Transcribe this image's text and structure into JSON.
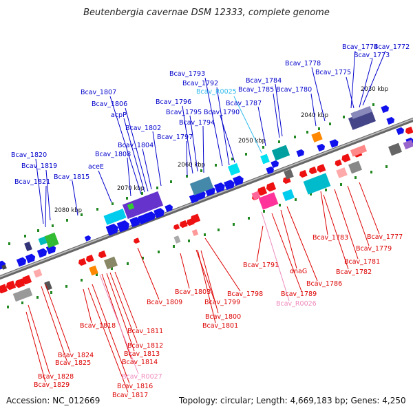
{
  "title": "Beutenbergia cavernae DSM 12333, complete genome",
  "footer": {
    "accession": "Accession: NC_012669",
    "topology": "Topology: circular; Length: 4,669,183 bp; Genes: 4,250"
  },
  "colors": {
    "forward_label": "#0000cc",
    "reverse_label": "#dd0000",
    "rna_forward_label": "#33bbee",
    "rna_reverse_label": "#ee88bb",
    "axis": "#888888",
    "forward_arrow": "#1111ee",
    "reverse_arrow": "#ee1111",
    "marker": "#228822"
  },
  "ticks": [
    "2030 kbp",
    "2040 kbp",
    "2050 kbp",
    "2060 kbp",
    "2070 kbp",
    "2080 kbp"
  ],
  "forward_labels": [
    "Bcav_1772",
    "Bcav_1773",
    "Bcav_1774",
    "Bcav_1775",
    "Bcav_1778",
    "Bcav_1780",
    "Bcav_1784",
    "Bcav_1785",
    "Bcav_1787",
    "Bcav_R0025",
    "Bcav_1790",
    "Bcav_1792",
    "Bcav_1793",
    "Bcav_1794",
    "Bcav_1795",
    "Bcav_1796",
    "Bcav_1797",
    "Bcav_1802",
    "Bcav_1804",
    "Bcav_1806",
    "Bcav_1807",
    "acpP",
    "Bcav_1808",
    "aceE",
    "Bcav_1815",
    "Bcav_1819",
    "Bcav_1820",
    "Bcav_1821"
  ],
  "reverse_labels": [
    "Bcav_1777",
    "Bcav_1779",
    "Bcav_1781",
    "Bcav_1782",
    "Bcav_1783",
    "Bcav_1786",
    "Bcav_1789",
    "Bcav_R0026",
    "dnaG",
    "Bcav_1791",
    "Bcav_1798",
    "Bcav_1799",
    "Bcav_1800",
    "Bcav_1801",
    "Bcav_1803",
    "Bcav_1809",
    "Bcav_1811",
    "Bcav_1812",
    "Bcav_1813",
    "Bcav_1814",
    "Bcav_R0027",
    "Bcav_1816",
    "Bcav_1817",
    "Bcav_1818",
    "Bcav_1824",
    "Bcav_1825",
    "Bcav_1828",
    "Bcav_1829"
  ]
}
